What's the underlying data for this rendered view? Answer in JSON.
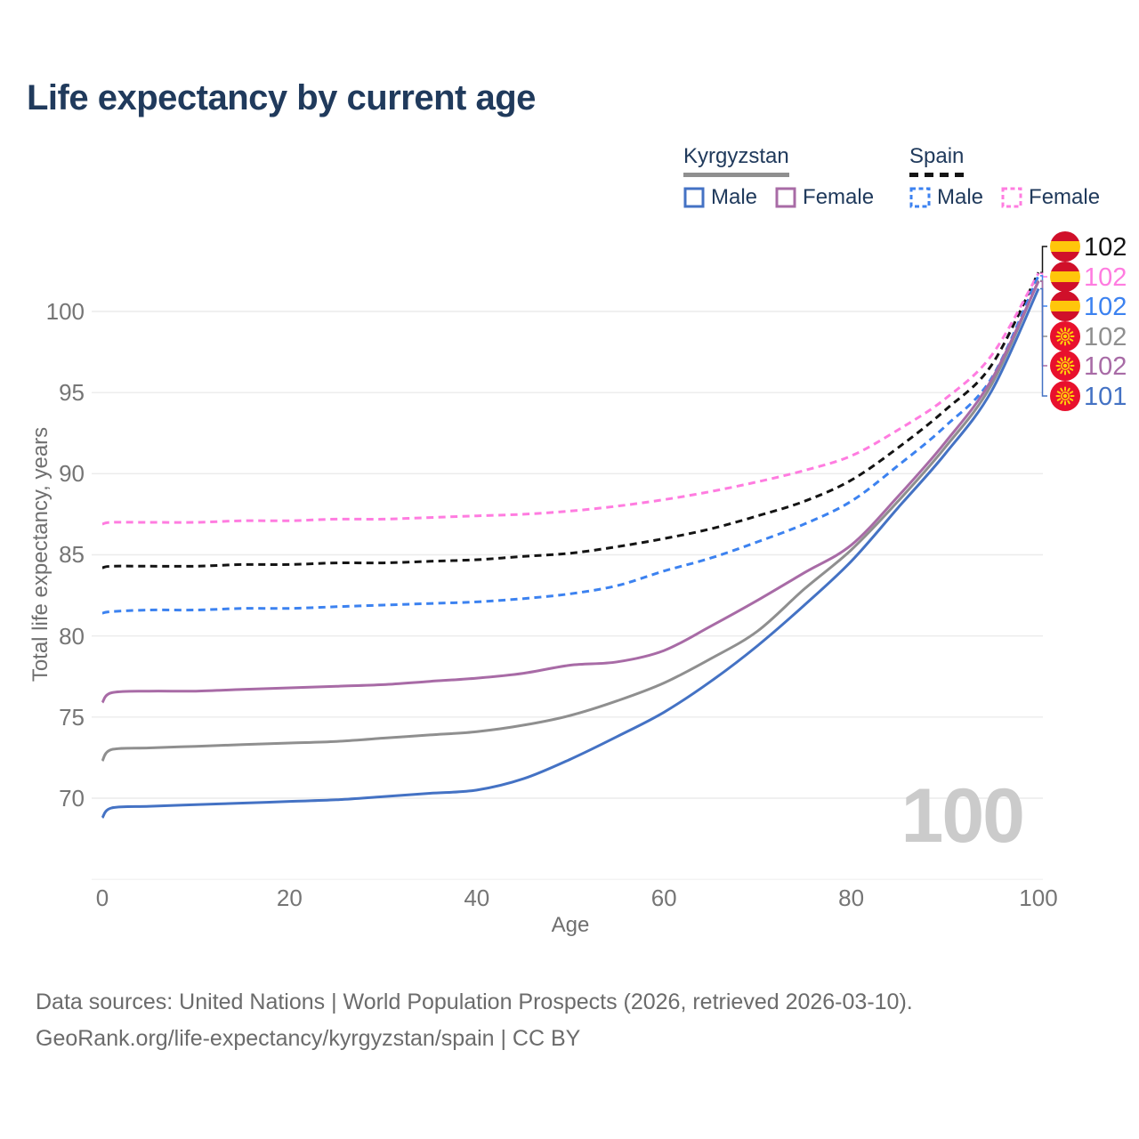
{
  "title": "Life expectancy by current age",
  "legend": {
    "groups": [
      {
        "name": "Kyrgyzstan",
        "line_style": "solid",
        "underline_color": "#8f8f8f",
        "items": [
          {
            "label": "Male",
            "color": "#4472c4"
          },
          {
            "label": "Female",
            "color": "#a86ba6"
          }
        ]
      },
      {
        "name": "Spain",
        "line_style": "dashed",
        "underline_color": "#141414",
        "items": [
          {
            "label": "Male",
            "color": "#3c82f0"
          },
          {
            "label": "Female",
            "color": "#ff7ce0"
          }
        ]
      }
    ]
  },
  "chart_data": {
    "type": "line",
    "title": "Life expectancy by current age",
    "xlabel": "Age",
    "ylabel": "Total life expectancy, years",
    "xlim": [
      0,
      100
    ],
    "ylim": [
      65,
      103
    ],
    "x_ticks": [
      0,
      20,
      40,
      60,
      80,
      100
    ],
    "y_ticks": [
      70,
      75,
      80,
      85,
      90,
      95,
      100
    ],
    "grid": "horizontal",
    "watermark": "100",
    "watermark_color": "#cbcbcb",
    "ages": [
      0,
      1,
      5,
      10,
      15,
      20,
      25,
      30,
      35,
      40,
      45,
      50,
      55,
      60,
      65,
      70,
      75,
      80,
      85,
      90,
      95,
      100
    ],
    "series": [
      {
        "name": "Spain Total",
        "country": "Spain",
        "sex": "Total",
        "color": "#141414",
        "dashed": true,
        "flag": "es",
        "end_label": "102",
        "values": [
          84.2,
          84.3,
          84.3,
          84.3,
          84.4,
          84.4,
          84.5,
          84.5,
          84.6,
          84.7,
          84.9,
          85.1,
          85.5,
          86.0,
          86.6,
          87.4,
          88.3,
          89.6,
          91.6,
          93.9,
          96.7,
          102.4
        ]
      },
      {
        "name": "Spain Female",
        "country": "Spain",
        "sex": "Female",
        "color": "#ff7ce0",
        "dashed": true,
        "flag": "es",
        "end_label": "102",
        "values": [
          86.9,
          87.0,
          87.0,
          87.0,
          87.1,
          87.1,
          87.2,
          87.2,
          87.3,
          87.4,
          87.5,
          87.7,
          88.0,
          88.4,
          88.9,
          89.5,
          90.2,
          91.1,
          92.7,
          94.6,
          97.3,
          102.35
        ]
      },
      {
        "name": "Spain Male",
        "country": "Spain",
        "sex": "Male",
        "color": "#3c82f0",
        "dashed": true,
        "flag": "es",
        "end_label": "102",
        "values": [
          81.4,
          81.5,
          81.6,
          81.6,
          81.7,
          81.7,
          81.8,
          81.9,
          82.0,
          82.1,
          82.3,
          82.6,
          83.1,
          84.0,
          84.8,
          85.8,
          86.9,
          88.3,
          90.5,
          92.9,
          95.9,
          102.2
        ]
      },
      {
        "name": "Kyrgyzstan Total",
        "country": "Kyrgyzstan",
        "sex": "Total",
        "color": "#8f8f8f",
        "dashed": false,
        "flag": "kg",
        "end_label": "102",
        "values": [
          72.3,
          73.0,
          73.1,
          73.2,
          73.3,
          73.4,
          73.5,
          73.7,
          73.9,
          74.1,
          74.5,
          75.1,
          76.0,
          77.1,
          78.6,
          80.3,
          82.9,
          85.3,
          88.3,
          91.6,
          95.5,
          101.9
        ]
      },
      {
        "name": "Kyrgyzstan Female",
        "country": "Kyrgyzstan",
        "sex": "Female",
        "color": "#a86ba6",
        "dashed": false,
        "flag": "kg",
        "end_label": "102",
        "values": [
          75.9,
          76.5,
          76.6,
          76.6,
          76.7,
          76.8,
          76.9,
          77.0,
          77.2,
          77.4,
          77.7,
          78.2,
          78.4,
          79.1,
          80.6,
          82.2,
          83.9,
          85.6,
          88.6,
          91.9,
          95.8,
          101.85
        ]
      },
      {
        "name": "Kyrgyzstan Male",
        "country": "Kyrgyzstan",
        "sex": "Male",
        "color": "#4472c4",
        "dashed": false,
        "flag": "kg",
        "end_label": "101",
        "values": [
          68.8,
          69.4,
          69.5,
          69.6,
          69.7,
          69.8,
          69.9,
          70.1,
          70.3,
          70.5,
          71.2,
          72.4,
          73.8,
          75.3,
          77.2,
          79.4,
          81.9,
          84.6,
          87.9,
          91.2,
          95.1,
          101.4
        ]
      }
    ],
    "flag_colors": {
      "es_red": "#d0102a",
      "es_yellow": "#ffc60b",
      "kg_red": "#e8112d",
      "kg_yellow": "#ffd20a"
    }
  },
  "footer": {
    "line1": "Data sources: United Nations | World Population Prospects (2026, retrieved 2026-03-10).",
    "line2": "GeoRank.org/life-expectancy/kyrgyzstan/spain | CC BY"
  }
}
